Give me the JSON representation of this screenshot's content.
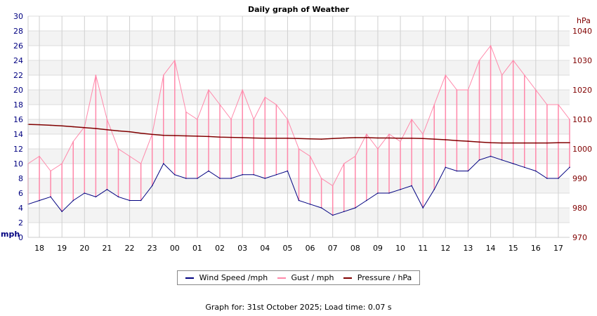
{
  "chart_data": {
    "type": "line",
    "title": "Daily graph of Weather",
    "ylabel_left": "mph",
    "ylabel_right": "hPa",
    "ylim_left": [
      0,
      30
    ],
    "ylim_right": [
      970,
      1045
    ],
    "yticks_left": [
      "0",
      "2",
      "4",
      "6",
      "8",
      "10",
      "12",
      "14",
      "16",
      "18",
      "20",
      "22",
      "24",
      "26",
      "28",
      "30"
    ],
    "yticks_right": [
      "970",
      "980",
      "990",
      "1000",
      "1010",
      "1020",
      "1030",
      "1040"
    ],
    "xticks": [
      "18",
      "19",
      "20",
      "21",
      "22",
      "23",
      "00",
      "01",
      "02",
      "03",
      "04",
      "05",
      "06",
      "07",
      "08",
      "09",
      "10",
      "11",
      "12",
      "13",
      "14",
      "15",
      "16",
      "17"
    ],
    "grid": true,
    "legend_position": "bottom",
    "x_hours": [
      17.5,
      18,
      18.5,
      19,
      19.5,
      20,
      20.5,
      21,
      21.5,
      22,
      22.5,
      23,
      23.5,
      24,
      24.5,
      25,
      25.5,
      26,
      26.5,
      27,
      27.5,
      28,
      28.5,
      29,
      29.5,
      30,
      30.5,
      31,
      31.5,
      32,
      32.5,
      33,
      33.5,
      34,
      34.5,
      35,
      35.5,
      36,
      36.5,
      37,
      37.5,
      38,
      38.5,
      39,
      39.5,
      40,
      40.5,
      41,
      41.5
    ],
    "series": [
      {
        "name": "Wind Speed /mph",
        "axis": "left",
        "color": "#000080",
        "values": [
          4.5,
          5,
          5.5,
          3.5,
          5,
          6,
          5.5,
          6.5,
          5.5,
          5,
          5,
          7,
          10,
          8.5,
          8,
          8,
          9,
          8,
          8,
          8.5,
          8.5,
          8,
          8.5,
          9,
          5,
          4.5,
          4,
          3,
          3.5,
          4,
          5,
          6,
          6,
          6.5,
          7,
          4,
          6.5,
          9.5,
          9,
          9,
          10.5,
          11,
          10.5,
          10,
          9.5,
          9,
          8,
          8,
          9.5
        ]
      },
      {
        "name": "Gust / mph",
        "axis": "left",
        "color": "#ff88aa",
        "values": [
          10,
          11,
          9,
          10,
          13,
          15,
          22,
          16,
          12,
          11,
          10,
          14,
          22,
          24,
          17,
          16,
          20,
          18,
          16,
          20,
          16,
          19,
          18,
          16,
          12,
          11,
          8,
          7,
          10,
          11,
          14,
          12,
          14,
          13,
          16,
          14,
          18,
          22,
          20,
          20,
          24,
          26,
          22,
          24,
          22,
          20,
          18,
          18,
          16
        ]
      },
      {
        "name": "Pressure / hPa",
        "axis": "right",
        "color": "#800000",
        "values": [
          1008.3,
          1008.2,
          1008,
          1007.8,
          1007.5,
          1007.2,
          1006.9,
          1006.5,
          1006.1,
          1005.8,
          1005.3,
          1004.9,
          1004.6,
          1004.5,
          1004.4,
          1004.3,
          1004.2,
          1004,
          1003.9,
          1003.8,
          1003.7,
          1003.6,
          1003.6,
          1003.6,
          1003.5,
          1003.4,
          1003.3,
          1003.5,
          1003.7,
          1003.8,
          1003.8,
          1003.7,
          1003.7,
          1003.6,
          1003.6,
          1003.5,
          1003.3,
          1003.1,
          1002.8,
          1002.6,
          1002.3,
          1002.1,
          1002,
          1002,
          1002,
          1002,
          1002,
          1002.1,
          1002.1
        ]
      }
    ]
  },
  "legend": {
    "wind": "Wind Speed /mph",
    "gust": "Gust / mph",
    "pressure": "Pressure / hPa"
  },
  "footer": "Graph for: 31st October 2025; Load time: 0.07 s"
}
